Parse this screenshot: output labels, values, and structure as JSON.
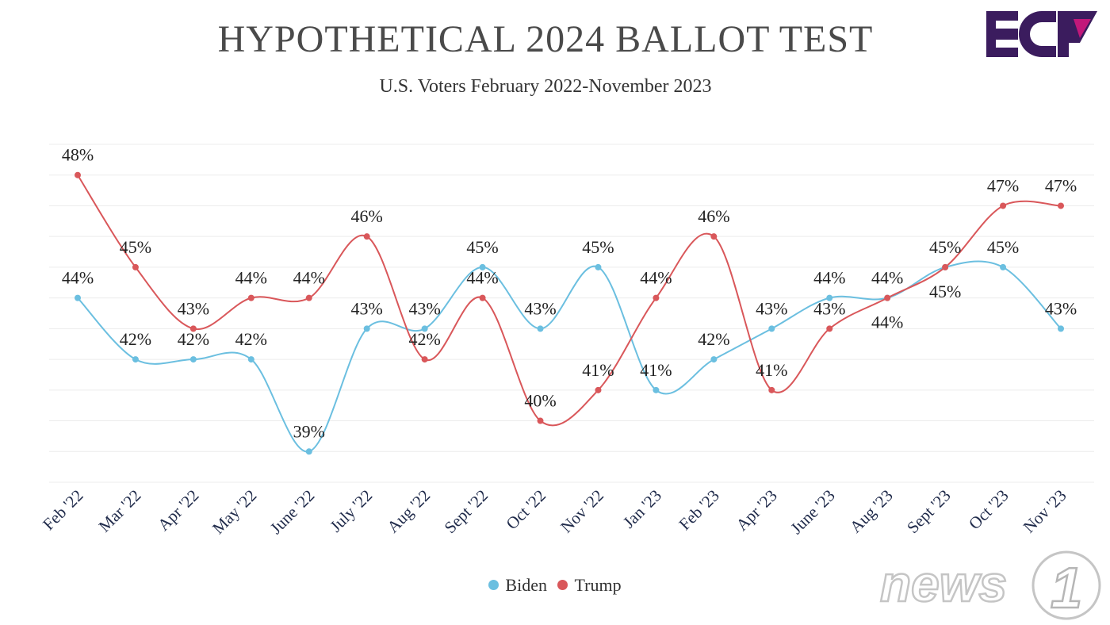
{
  "chart_data": {
    "type": "line",
    "title": "HYPOTHETICAL 2024 BALLOT TEST",
    "subtitle": "U.S. Voters February 2022-November 2023",
    "xlabel": "",
    "ylabel": "",
    "ylim": [
      38,
      49
    ],
    "grid": true,
    "legend_placement": "bottom-center",
    "categories": [
      "Feb '22",
      "Mar '22",
      "Apr '22",
      "May '22",
      "June '22",
      "July '22",
      "Aug '22",
      "Sept '22",
      "Oct '22",
      "Nov '22",
      "Jan '23",
      "Feb '23",
      "Apr '23",
      "June '23",
      "Aug '23",
      "Sept '23",
      "Oct '23",
      "Nov '23"
    ],
    "series": [
      {
        "name": "Biden",
        "color": "#6bbfe0",
        "values": [
          44,
          42,
          42,
          42,
          39,
          43,
          43,
          45,
          43,
          45,
          41,
          42,
          43,
          44,
          44,
          45,
          45,
          43
        ]
      },
      {
        "name": "Trump",
        "color": "#d9575a",
        "values": [
          48,
          45,
          43,
          44,
          44,
          46,
          42,
          44,
          40,
          41,
          44,
          46,
          41,
          43,
          44,
          45,
          47,
          47
        ]
      }
    ],
    "value_suffix": "%"
  },
  "logo": {
    "text": "ECP",
    "colors": [
      "#3b1c5e",
      "#c2187a"
    ]
  },
  "watermark": {
    "text": "news1"
  }
}
